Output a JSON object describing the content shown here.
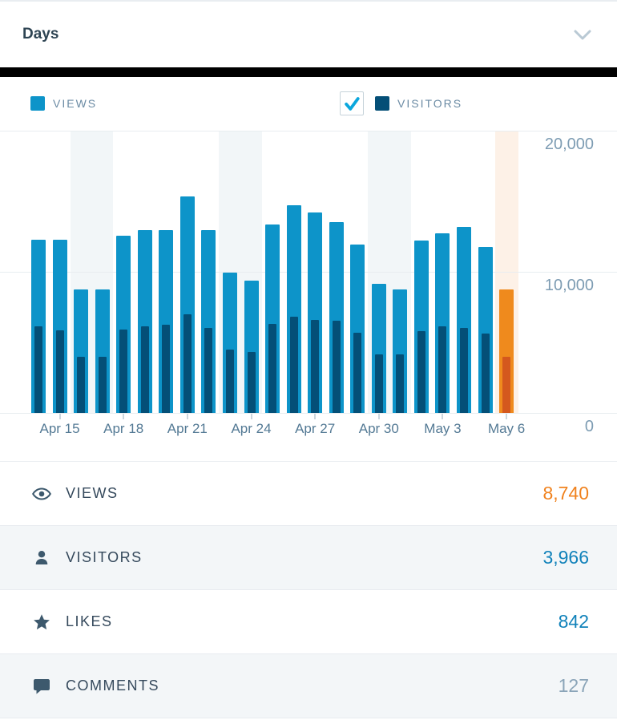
{
  "header": {
    "title": "Days"
  },
  "legend": {
    "views_label": "VIEWS",
    "visitors_label": "VISITORS",
    "views_color": "#0d94c9",
    "visitors_color": "#044f77",
    "visitors_checkbox_checked": true
  },
  "chart_data": {
    "type": "bar",
    "title": "Views and Visitors per day",
    "x": [
      "Apr 14",
      "Apr 15",
      "Apr 16",
      "Apr 17",
      "Apr 18",
      "Apr 19",
      "Apr 20",
      "Apr 21",
      "Apr 22",
      "Apr 23",
      "Apr 24",
      "Apr 25",
      "Apr 26",
      "Apr 27",
      "Apr 28",
      "Apr 29",
      "Apr 30",
      "May 1",
      "May 2",
      "May 3",
      "May 4",
      "May 5",
      "May 6"
    ],
    "series": [
      {
        "name": "Views",
        "color": "#0d94c9",
        "values": [
          12300,
          12300,
          8750,
          8750,
          12550,
          12950,
          12950,
          15350,
          12950,
          9950,
          9400,
          13350,
          14700,
          14200,
          13550,
          11950,
          9150,
          8750,
          12200,
          12750,
          13200,
          11750,
          8740
        ]
      },
      {
        "name": "Visitors",
        "color": "#044f77",
        "values": [
          6150,
          5850,
          3980,
          3980,
          5900,
          6150,
          6250,
          7000,
          6000,
          4490,
          4320,
          6300,
          6800,
          6600,
          6550,
          5700,
          4170,
          4170,
          5820,
          6160,
          6020,
          5650,
          3966
        ]
      }
    ],
    "ylim": [
      0,
      20000
    ],
    "yticks": [
      {
        "value": 20000,
        "label": "20,000"
      },
      {
        "value": 10000,
        "label": "10,000"
      },
      {
        "value": 0,
        "label": "0"
      }
    ],
    "xtick_indices": [
      1,
      4,
      7,
      10,
      13,
      16,
      19,
      22
    ],
    "weekend_band_pairs": [
      [
        2,
        3
      ],
      [
        9,
        10
      ],
      [
        16,
        17
      ]
    ],
    "weekend_band_color": "#f2f6f8",
    "highlight_index": 22,
    "highlight_views_color": "#ef8a1d",
    "highlight_visitors_color": "#d4581e",
    "highlight_band_color": "#fdf1e7",
    "grid": true,
    "legend_position": "top"
  },
  "summary": {
    "rows": [
      {
        "label": "VIEWS",
        "value": "8,740",
        "icon": "eye-icon",
        "value_color": "#f0821e"
      },
      {
        "label": "VISITORS",
        "value": "3,966",
        "icon": "person-icon",
        "value_color": "#1182ba"
      },
      {
        "label": "LIKES",
        "value": "842",
        "icon": "star-icon",
        "value_color": "#1182ba"
      },
      {
        "label": "COMMENTS",
        "value": "127",
        "icon": "comment-icon",
        "value_color": "#8aa4b8"
      }
    ]
  }
}
